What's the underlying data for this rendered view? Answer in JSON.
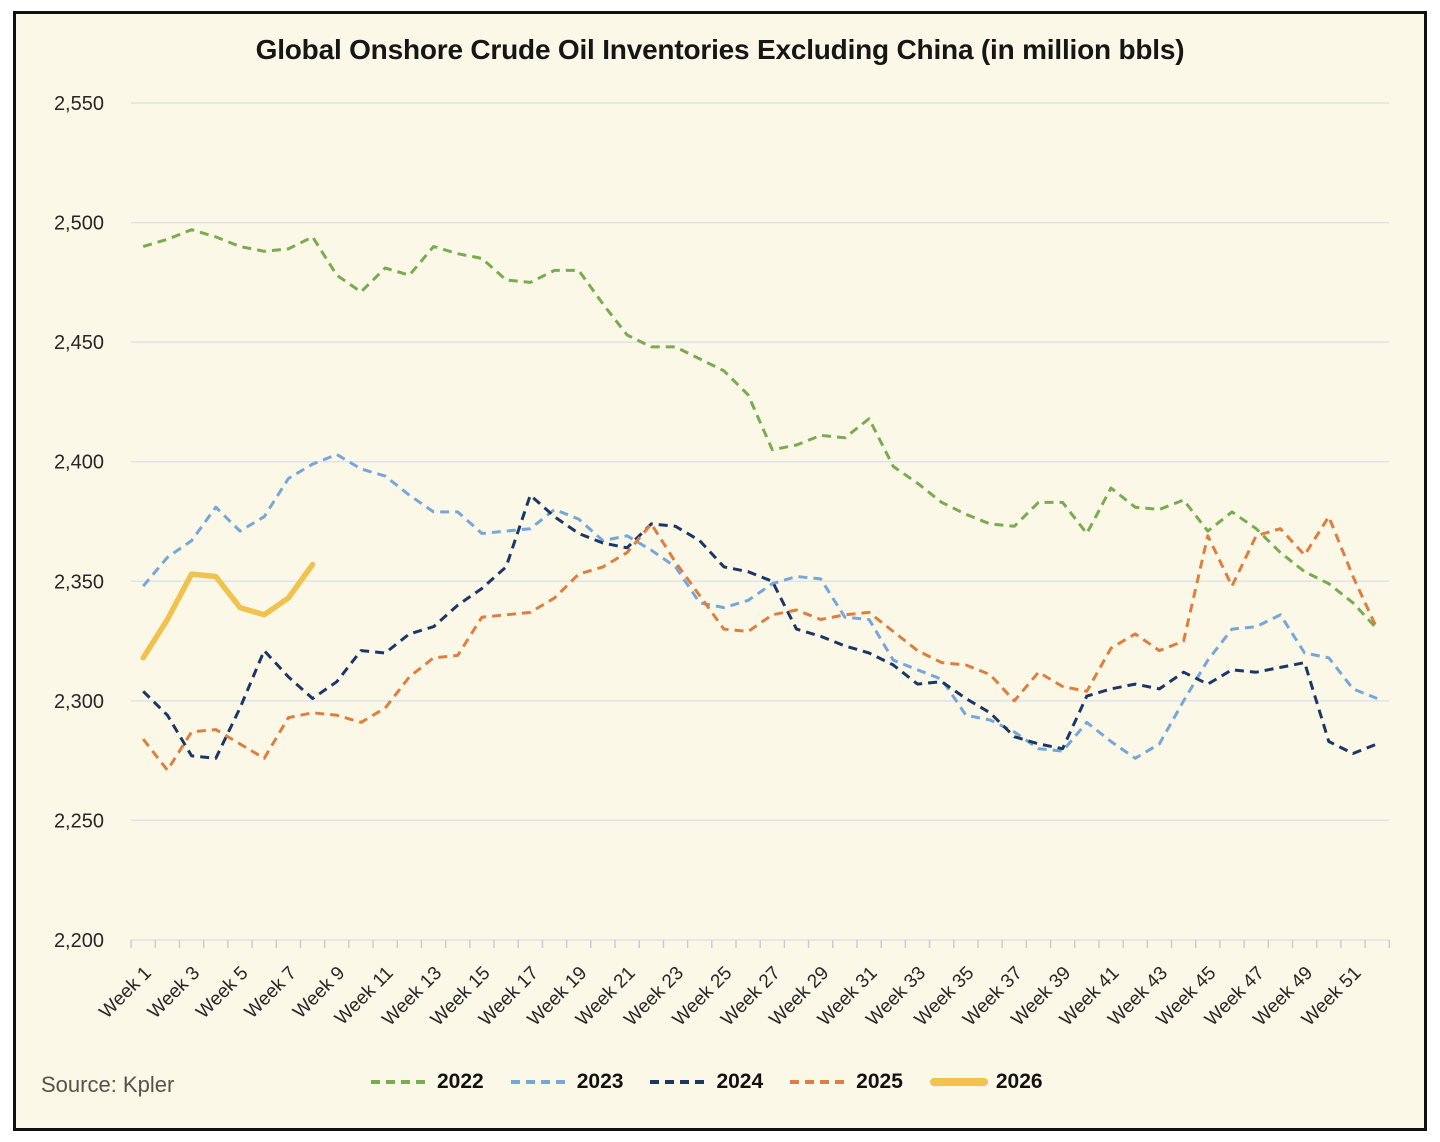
{
  "source": "Source: Kpler",
  "chart_data": {
    "type": "line",
    "title": "Global Onshore Crude Oil Inventories Excluding China (in million bbls)",
    "xlabel": "",
    "ylabel": "",
    "y_min": 2200,
    "y_max": 2550,
    "y_step": 50,
    "grid": "horizontal",
    "legend_position": "bottom",
    "weeks": 52,
    "y_tick_labels": [
      "2,550",
      "2,500",
      "2,450",
      "2,400",
      "2,350",
      "2,300",
      "2,250",
      "2,200"
    ],
    "x_tick_labels": [
      "Week 1",
      "Week 3",
      "Week 5",
      "Week 7",
      "Week 9",
      "Week 11",
      "Week 13",
      "Week 15",
      "Week 17",
      "Week 19",
      "Week 21",
      "Week 23",
      "Week 25",
      "Week 27",
      "Week 29",
      "Week 31",
      "Week 33",
      "Week 35",
      "Week 37",
      "Week 39",
      "Week 41",
      "Week 43",
      "Week 45",
      "Week 47",
      "Week 49",
      "Week 51"
    ],
    "colors": {
      "background": "#FCF8E8",
      "gridline": "#DFE3E7",
      "tick": "#C6CBD0",
      "series_2022": "#79AC51",
      "series_2023": "#76A7DB",
      "series_2024": "#1B3766",
      "series_2025": "#DE7F3E",
      "series_2026": "#F1C24D"
    },
    "series": [
      {
        "name": "2022",
        "color": "#79AC51",
        "dashed": true,
        "values": [
          2490,
          2493,
          2497,
          2494,
          2490,
          2488,
          2489,
          2494,
          2478,
          2471,
          2481,
          2478,
          2490,
          2487,
          2485,
          2476,
          2475,
          2480,
          2480,
          2466,
          2453,
          2448,
          2448,
          2443,
          2438,
          2428,
          2405,
          2407,
          2411,
          2410,
          2418,
          2398,
          2391,
          2383,
          2378,
          2374,
          2373,
          2383,
          2383,
          2370,
          2389,
          2381,
          2380,
          2384,
          2371,
          2379,
          2372,
          2362,
          2354,
          2349,
          2341,
          2330
        ]
      },
      {
        "name": "2023",
        "color": "#76A7DB",
        "dashed": true,
        "values": [
          2348,
          2360,
          2367,
          2381,
          2371,
          2377,
          2393,
          2399,
          2403,
          2397,
          2394,
          2386,
          2379,
          2379,
          2370,
          2371,
          2372,
          2380,
          2376,
          2367,
          2369,
          2363,
          2356,
          2341,
          2339,
          2342,
          2349,
          2352,
          2351,
          2335,
          2334,
          2317,
          2313,
          2309,
          2294,
          2292,
          2287,
          2280,
          2279,
          2291,
          2283,
          2276,
          2282,
          2300,
          2317,
          2330,
          2331,
          2336,
          2320,
          2318,
          2305,
          2301
        ]
      },
      {
        "name": "2024",
        "color": "#1B3766",
        "dashed": true,
        "values": [
          2304,
          2294,
          2277,
          2276,
          2297,
          2321,
          2310,
          2301,
          2308,
          2321,
          2320,
          2328,
          2331,
          2340,
          2347,
          2356,
          2386,
          2377,
          2370,
          2366,
          2364,
          2374,
          2373,
          2367,
          2356,
          2354,
          2350,
          2330,
          2327,
          2323,
          2320,
          2315,
          2307,
          2308,
          2301,
          2295,
          2285,
          2282,
          2280,
          2302,
          2305,
          2307,
          2305,
          2312,
          2307,
          2313,
          2312,
          2314,
          2316,
          2283,
          2278,
          2282
        ]
      },
      {
        "name": "2025",
        "color": "#DE7F3E",
        "dashed": true,
        "values": [
          2284,
          2271,
          2287,
          2288,
          2282,
          2276,
          2293,
          2295,
          2294,
          2291,
          2297,
          2310,
          2318,
          2319,
          2335,
          2336,
          2337,
          2343,
          2353,
          2356,
          2362,
          2374,
          2358,
          2344,
          2330,
          2329,
          2336,
          2338,
          2334,
          2336,
          2337,
          2329,
          2321,
          2316,
          2315,
          2311,
          2300,
          2312,
          2306,
          2304,
          2322,
          2328,
          2321,
          2325,
          2369,
          2348,
          2369,
          2372,
          2361,
          2377,
          2352,
          2330
        ]
      },
      {
        "name": "2026",
        "color": "#F1C24D",
        "dashed": false,
        "values": [
          2318,
          2334,
          2353,
          2352,
          2339,
          2336,
          2343,
          2357
        ]
      }
    ]
  }
}
